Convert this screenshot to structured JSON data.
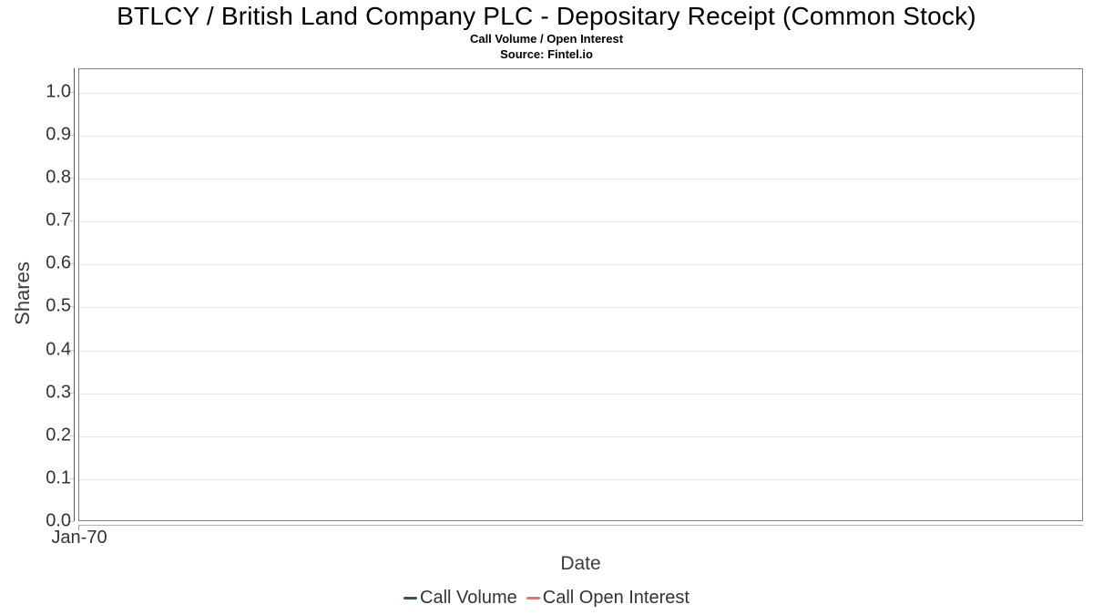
{
  "title": "BTLCY / British Land Company PLC - Depositary Receipt (Common Stock)",
  "subtitle": "Call Volume / Open Interest",
  "source": "Source: Fintel.io",
  "colors": {
    "call_volume": "#2e5e41",
    "call_open_interest": "#fa6b6b",
    "gridline": "#e6e6e6",
    "plot_border": "#7f7f7f",
    "text": "#333333"
  },
  "chart_data": {
    "type": "line",
    "title": "BTLCY / British Land Company PLC - Depositary Receipt (Common Stock)",
    "subtitle": "Call Volume / Open Interest",
    "source": "Source: Fintel.io",
    "xlabel": "Date",
    "ylabel": "Shares",
    "x_ticks": [
      "Jan-70"
    ],
    "y_ticks": [
      "0.0",
      "0.1",
      "0.2",
      "0.3",
      "0.4",
      "0.5",
      "0.6",
      "0.7",
      "0.8",
      "0.9",
      "1.0"
    ],
    "ylim": [
      0,
      1.055
    ],
    "grid": true,
    "legend_position": "bottom",
    "series": [
      {
        "name": "Call Volume",
        "color": "#2e5e41",
        "x": [],
        "values": []
      },
      {
        "name": "Call Open Interest",
        "color": "#fa6b6b",
        "x": [],
        "values": []
      }
    ]
  }
}
